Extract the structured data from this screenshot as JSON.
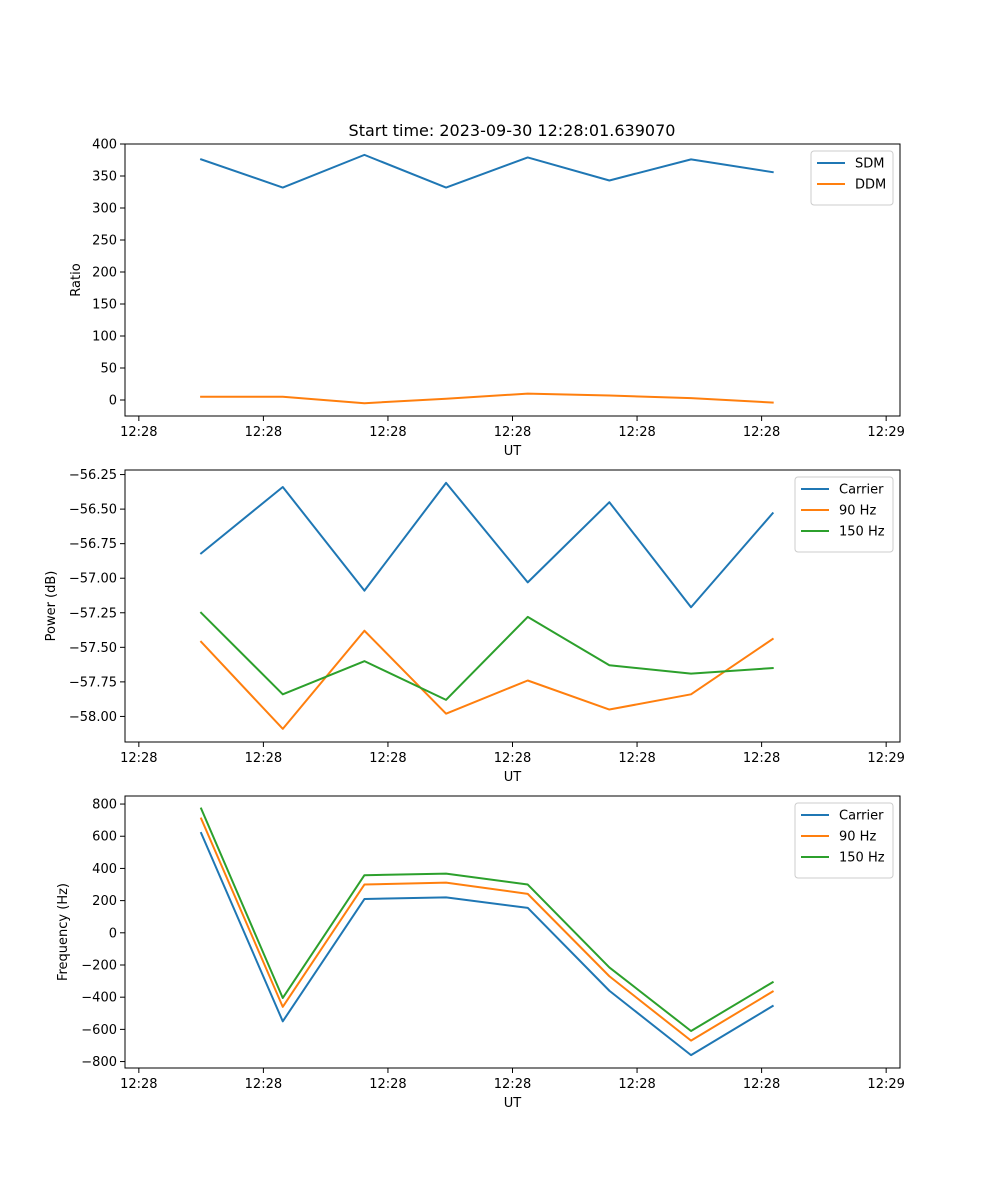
{
  "figure_title": "Start time: 2023-09-30 12:28:01.639070",
  "chart_data": [
    {
      "type": "line",
      "title": "Start time: 2023-09-30 12:28:01.639070",
      "xlabel": "UT",
      "ylabel": "Ratio",
      "xlim": [
        -0.06,
        1.06
      ],
      "ylim": [
        -25,
        400
      ],
      "x_ticks": [
        {
          "value": -0.04,
          "label": "12:28"
        },
        {
          "value": 0.14,
          "label": "12:28"
        },
        {
          "value": 0.32,
          "label": "12:28"
        },
        {
          "value": 0.5,
          "label": "12:28"
        },
        {
          "value": 0.68,
          "label": "12:28"
        },
        {
          "value": 0.86,
          "label": "12:28"
        },
        {
          "value": 1.04,
          "label": "12:29"
        }
      ],
      "y_ticks": [
        0,
        50,
        100,
        150,
        200,
        250,
        300,
        350,
        400
      ],
      "y_tick_labels": [
        "0",
        "50",
        "100",
        "150",
        "200",
        "250",
        "300",
        "350",
        "400"
      ],
      "legend_position": "top-right",
      "x": [
        0.05,
        0.168,
        0.286,
        0.404,
        0.522,
        0.64,
        0.758,
        0.876
      ],
      "series": [
        {
          "name": "SDM",
          "color": "#1f77b4",
          "values": [
            376,
            332,
            383,
            332,
            379,
            343,
            376,
            356
          ]
        },
        {
          "name": "DDM",
          "color": "#ff7f0e",
          "values": [
            5,
            5,
            -5,
            2,
            10,
            7,
            3,
            -4
          ]
        }
      ]
    },
    {
      "type": "line",
      "title": "",
      "xlabel": "UT",
      "ylabel": "Power (dB)",
      "xlim": [
        -0.06,
        1.06
      ],
      "ylim": [
        -58.185,
        -56.217
      ],
      "x_ticks": [
        {
          "value": -0.04,
          "label": "12:28"
        },
        {
          "value": 0.14,
          "label": "12:28"
        },
        {
          "value": 0.32,
          "label": "12:28"
        },
        {
          "value": 0.5,
          "label": "12:28"
        },
        {
          "value": 0.68,
          "label": "12:28"
        },
        {
          "value": 0.86,
          "label": "12:28"
        },
        {
          "value": 1.04,
          "label": "12:29"
        }
      ],
      "y_ticks": [
        -58.0,
        -57.75,
        -57.5,
        -57.25,
        -57.0,
        -56.75,
        -56.5,
        -56.25
      ],
      "y_tick_labels": [
        "−58.00",
        "−57.75",
        "−57.50",
        "−57.25",
        "−57.00",
        "−56.75",
        "−56.50",
        "−56.25"
      ],
      "legend_position": "top-right",
      "x": [
        0.05,
        0.168,
        0.286,
        0.404,
        0.522,
        0.64,
        0.758,
        0.876
      ],
      "series": [
        {
          "name": "Carrier",
          "color": "#1f77b4",
          "values": [
            -56.82,
            -56.34,
            -57.09,
            -56.31,
            -57.03,
            -56.45,
            -57.21,
            -56.53
          ]
        },
        {
          "name": "90 Hz",
          "color": "#ff7f0e",
          "values": [
            -57.46,
            -58.09,
            -57.38,
            -57.98,
            -57.74,
            -57.95,
            -57.84,
            -57.44
          ]
        },
        {
          "name": "150 Hz",
          "color": "#2ca02c",
          "values": [
            -57.25,
            -57.84,
            -57.6,
            -57.88,
            -57.28,
            -57.63,
            -57.69,
            -57.65
          ]
        }
      ]
    },
    {
      "type": "line",
      "title": "",
      "xlabel": "UT",
      "ylabel": "Frequency (Hz)",
      "xlim": [
        -0.06,
        1.06
      ],
      "ylim": [
        -840,
        850
      ],
      "x_ticks": [
        {
          "value": -0.04,
          "label": "12:28"
        },
        {
          "value": 0.14,
          "label": "12:28"
        },
        {
          "value": 0.32,
          "label": "12:28"
        },
        {
          "value": 0.5,
          "label": "12:28"
        },
        {
          "value": 0.68,
          "label": "12:28"
        },
        {
          "value": 0.86,
          "label": "12:28"
        },
        {
          "value": 1.04,
          "label": "12:29"
        }
      ],
      "y_ticks": [
        -800,
        -600,
        -400,
        -200,
        0,
        200,
        400,
        600,
        800
      ],
      "y_tick_labels": [
        "−800",
        "−600",
        "−400",
        "−200",
        "0",
        "200",
        "400",
        "600",
        "800"
      ],
      "legend_position": "top-right",
      "x": [
        0.05,
        0.168,
        0.286,
        0.404,
        0.522,
        0.64,
        0.758,
        0.876
      ],
      "series": [
        {
          "name": "Carrier",
          "color": "#1f77b4",
          "values": [
            620,
            -550,
            210,
            220,
            155,
            -360,
            -760,
            -455
          ]
        },
        {
          "name": "90 Hz",
          "color": "#ff7f0e",
          "values": [
            710,
            -460,
            300,
            312,
            242,
            -270,
            -670,
            -365
          ]
        },
        {
          "name": "150 Hz",
          "color": "#2ca02c",
          "values": [
            772,
            -405,
            358,
            368,
            300,
            -215,
            -610,
            -307
          ]
        }
      ]
    }
  ]
}
